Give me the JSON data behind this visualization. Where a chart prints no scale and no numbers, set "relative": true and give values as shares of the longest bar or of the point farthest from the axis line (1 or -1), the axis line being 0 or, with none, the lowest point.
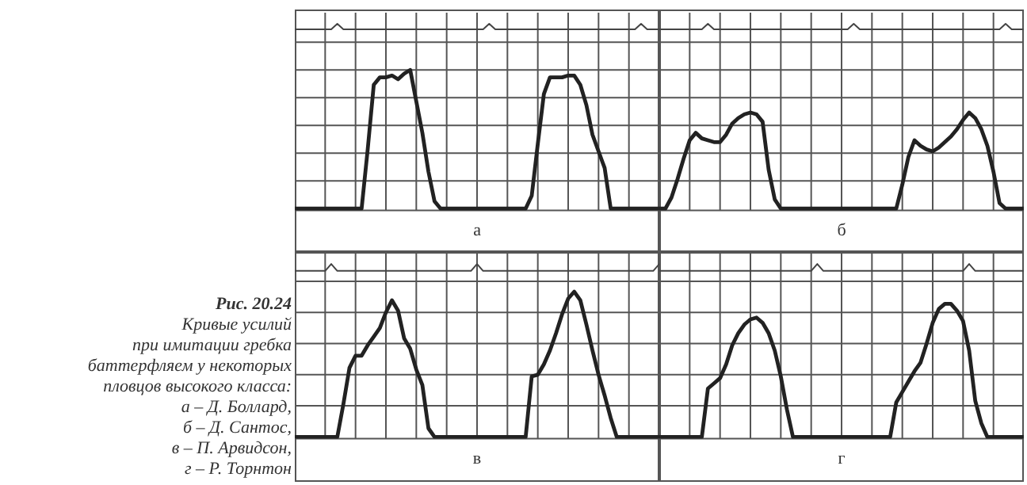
{
  "chart_data": [
    {
      "type": "line",
      "title": "а",
      "relative": true,
      "categories": [
        null,
        null,
        null,
        null,
        null,
        null,
        null,
        null,
        null,
        null,
        null,
        null,
        null,
        null,
        null,
        null,
        null,
        null,
        null,
        null,
        null,
        null,
        null,
        null,
        null,
        null,
        null,
        null,
        null,
        null,
        null,
        null,
        null,
        null,
        null,
        null,
        null,
        null,
        null,
        null,
        null,
        null,
        null,
        null,
        null,
        null,
        null,
        null,
        null,
        null,
        null,
        null,
        null,
        null,
        null,
        null,
        null,
        null,
        null,
        null,
        null
      ],
      "grid": true,
      "series": [
        {
          "color": "#222222",
          "values": [
            0,
            0,
            0,
            0,
            0,
            0,
            0,
            0,
            0,
            0,
            0,
            0,
            0.32,
            0.67,
            0.71,
            0.71,
            0.72,
            0.7,
            0.73,
            0.75,
            0.58,
            0.41,
            0.2,
            0.04,
            0,
            0,
            0,
            0,
            0,
            0,
            0,
            0,
            0,
            0,
            0,
            0,
            0,
            0,
            0,
            0.07,
            0.35,
            0.62,
            0.71,
            0.71,
            0.71,
            0.72,
            0.72,
            0.67,
            0.56,
            0.4,
            0.31,
            0.22,
            0,
            0,
            0,
            0,
            0,
            0,
            0,
            0,
            0
          ]
        },
        {
          "color": "#444444",
          "values": [
            0.97,
            0.97,
            0.97,
            0.97,
            0.97,
            0.97,
            0.97,
            1,
            0.97,
            0.97,
            0.97,
            0.97,
            0.97,
            0.97,
            0.97,
            0.97,
            0.97,
            0.97,
            0.97,
            0.97,
            0.97,
            0.97,
            0.97,
            0.97,
            0.97,
            0.97,
            0.97,
            0.97,
            0.97,
            0.97,
            0.97,
            0.97,
            1,
            0.97,
            0.97,
            0.97,
            0.97,
            0.97,
            0.97,
            0.97,
            0.97,
            0.97,
            0.97,
            0.97,
            0.97,
            0.97,
            0.97,
            0.97,
            0.97,
            0.97,
            0.97,
            0.97,
            0.97,
            0.97,
            0.97,
            0.97,
            0.97,
            1,
            0.97,
            0.97,
            0.97
          ]
        }
      ]
    },
    {
      "type": "line",
      "title": "б",
      "relative": true,
      "categories": [
        null,
        null,
        null,
        null,
        null,
        null,
        null,
        null,
        null,
        null,
        null,
        null,
        null,
        null,
        null,
        null,
        null,
        null,
        null,
        null,
        null,
        null,
        null,
        null,
        null,
        null,
        null,
        null,
        null,
        null,
        null,
        null,
        null,
        null,
        null,
        null,
        null,
        null,
        null,
        null,
        null,
        null,
        null,
        null,
        null,
        null,
        null,
        null,
        null,
        null,
        null,
        null,
        null,
        null,
        null,
        null,
        null,
        null,
        null,
        null,
        null
      ],
      "grid": true,
      "series": [
        {
          "color": "#222222",
          "values": [
            0,
            0,
            0.06,
            0.16,
            0.27,
            0.37,
            0.41,
            0.38,
            0.37,
            0.36,
            0.36,
            0.4,
            0.46,
            0.49,
            0.51,
            0.52,
            0.51,
            0.47,
            0.21,
            0.05,
            0,
            0,
            0,
            0,
            0,
            0,
            0,
            0,
            0,
            0,
            0,
            0,
            0,
            0,
            0,
            0,
            0,
            0,
            0,
            0,
            0.13,
            0.28,
            0.37,
            0.34,
            0.32,
            0.31,
            0.33,
            0.36,
            0.39,
            0.43,
            0.48,
            0.52,
            0.49,
            0.43,
            0.34,
            0.2,
            0.03,
            0,
            0,
            0,
            0
          ]
        },
        {
          "color": "#444444",
          "values": [
            0.97,
            0.97,
            0.97,
            0.97,
            0.97,
            0.97,
            0.97,
            0.97,
            1,
            0.97,
            0.97,
            0.97,
            0.97,
            0.97,
            0.97,
            0.97,
            0.97,
            0.97,
            0.97,
            0.97,
            0.97,
            0.97,
            0.97,
            0.97,
            0.97,
            0.97,
            0.97,
            0.97,
            0.97,
            0.97,
            0.97,
            0.97,
            1,
            0.97,
            0.97,
            0.97,
            0.97,
            0.97,
            0.97,
            0.97,
            0.97,
            0.97,
            0.97,
            0.97,
            0.97,
            0.97,
            0.97,
            0.97,
            0.97,
            0.97,
            0.97,
            0.97,
            0.97,
            0.97,
            0.97,
            0.97,
            0.97,
            1,
            0.97,
            0.97,
            0.97
          ]
        }
      ]
    },
    {
      "type": "line",
      "title": "в",
      "relative": true,
      "categories": [
        null,
        null,
        null,
        null,
        null,
        null,
        null,
        null,
        null,
        null,
        null,
        null,
        null,
        null,
        null,
        null,
        null,
        null,
        null,
        null,
        null,
        null,
        null,
        null,
        null,
        null,
        null,
        null,
        null,
        null,
        null,
        null,
        null,
        null,
        null,
        null,
        null,
        null,
        null,
        null,
        null,
        null,
        null,
        null,
        null,
        null,
        null,
        null,
        null,
        null,
        null,
        null,
        null,
        null,
        null,
        null,
        null,
        null,
        null,
        null,
        null
      ],
      "grid": true,
      "series": [
        {
          "color": "#222222",
          "values": [
            0,
            0,
            0,
            0,
            0,
            0,
            0,
            0,
            0.19,
            0.4,
            0.47,
            0.47,
            0.53,
            0.58,
            0.63,
            0.72,
            0.79,
            0.73,
            0.57,
            0.51,
            0.39,
            0.3,
            0.05,
            0,
            0,
            0,
            0,
            0,
            0,
            0,
            0,
            0,
            0,
            0,
            0,
            0,
            0,
            0,
            0,
            0.35,
            0.36,
            0.42,
            0.5,
            0.6,
            0.71,
            0.8,
            0.84,
            0.79,
            0.65,
            0.5,
            0.36,
            0.24,
            0.11,
            0,
            0,
            0,
            0,
            0,
            0,
            0,
            0
          ]
        },
        {
          "color": "#444444",
          "values": [
            0.96,
            0.96,
            0.96,
            0.96,
            0.96,
            0.96,
            1,
            0.96,
            0.96,
            0.96,
            0.96,
            0.96,
            0.96,
            0.96,
            0.96,
            0.96,
            0.96,
            0.96,
            0.96,
            0.96,
            0.96,
            0.96,
            0.96,
            0.96,
            0.96,
            0.96,
            0.96,
            0.96,
            0.96,
            0.96,
            1,
            0.96,
            0.96,
            0.96,
            0.96,
            0.96,
            0.96,
            0.96,
            0.96,
            0.96,
            0.96,
            0.96,
            0.96,
            0.96,
            0.96,
            0.96,
            0.96,
            0.96,
            0.96,
            0.96,
            0.96,
            0.96,
            0.96,
            0.96,
            0.96,
            0.96,
            0.96,
            0.96,
            0.96,
            0.96,
            1
          ]
        }
      ]
    },
    {
      "type": "line",
      "title": "г",
      "relative": true,
      "categories": [
        null,
        null,
        null,
        null,
        null,
        null,
        null,
        null,
        null,
        null,
        null,
        null,
        null,
        null,
        null,
        null,
        null,
        null,
        null,
        null,
        null,
        null,
        null,
        null,
        null,
        null,
        null,
        null,
        null,
        null,
        null,
        null,
        null,
        null,
        null,
        null,
        null,
        null,
        null,
        null,
        null,
        null,
        null,
        null,
        null,
        null,
        null,
        null,
        null,
        null,
        null,
        null,
        null,
        null,
        null,
        null,
        null,
        null,
        null,
        null,
        null
      ],
      "grid": true,
      "series": [
        {
          "color": "#222222",
          "values": [
            0,
            0,
            0,
            0,
            0,
            0,
            0,
            0,
            0.28,
            0.31,
            0.34,
            0.42,
            0.53,
            0.6,
            0.65,
            0.68,
            0.69,
            0.66,
            0.6,
            0.5,
            0.35,
            0.16,
            0,
            0,
            0,
            0,
            0,
            0,
            0,
            0,
            0,
            0,
            0,
            0,
            0,
            0,
            0,
            0,
            0,
            0.2,
            0.26,
            0.32,
            0.38,
            0.43,
            0.54,
            0.66,
            0.74,
            0.77,
            0.77,
            0.73,
            0.67,
            0.5,
            0.21,
            0.08,
            0,
            0,
            0,
            0,
            0,
            0,
            0
          ]
        },
        {
          "color": "#444444",
          "values": [
            0.96,
            0.96,
            0.96,
            0.96,
            0.96,
            0.96,
            0.96,
            0.96,
            0.96,
            0.96,
            0.96,
            0.96,
            0.96,
            0.96,
            0.96,
            0.96,
            0.96,
            0.96,
            0.96,
            0.96,
            0.96,
            0.96,
            0.96,
            0.96,
            0.96,
            0.96,
            1,
            0.96,
            0.96,
            0.96,
            0.96,
            0.96,
            0.96,
            0.96,
            0.96,
            0.96,
            0.96,
            0.96,
            0.96,
            0.96,
            0.96,
            0.96,
            0.96,
            0.96,
            0.96,
            0.96,
            0.96,
            0.96,
            0.96,
            0.96,
            0.96,
            1,
            0.96,
            0.96,
            0.96,
            0.96,
            0.96,
            0.96,
            0.96,
            0.96,
            0.96
          ]
        }
      ]
    },
    {
      "type": "other",
      "title": "Рис. 20.24",
      "annotations": [
        "Кривые усилий",
        "при имитации гребка",
        "баттерфляем у некоторых",
        "пловцов высокого класса:",
        "а – Д. Боллард,",
        "б – Д. Сантос,",
        "в – П. Арвидсон,",
        "г – Р. Торнтон"
      ]
    }
  ]
}
